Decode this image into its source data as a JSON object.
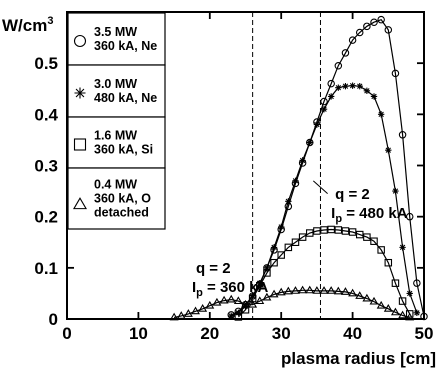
{
  "chart_data": {
    "type": "line",
    "title": "",
    "xlabel": "plasma radius [cm]",
    "ylabel": "W/cm³",
    "xlim": [
      0,
      50
    ],
    "ylim": [
      0,
      0.6
    ],
    "x_ticks": [
      "0",
      "10",
      "20",
      "30",
      "40",
      "50"
    ],
    "y_ticks": [
      "0",
      "0.1",
      "0.2",
      "0.3",
      "0.4",
      "0.5"
    ],
    "grid": false,
    "legend_position": "left",
    "series": [
      {
        "name": "3.5 MW 360 kA, Ne",
        "label_lines": [
          "3.5 MW",
          "360 kA, Ne"
        ],
        "marker": "circle",
        "points": [
          [
            23,
            0.008
          ],
          [
            24,
            0.015
          ],
          [
            25,
            0.028
          ],
          [
            26,
            0.045
          ],
          [
            27,
            0.068
          ],
          [
            28,
            0.1
          ],
          [
            29,
            0.135
          ],
          [
            30,
            0.175
          ],
          [
            31,
            0.22
          ],
          [
            32,
            0.265
          ],
          [
            33,
            0.305
          ],
          [
            34,
            0.345
          ],
          [
            35,
            0.385
          ],
          [
            36,
            0.425
          ],
          [
            37,
            0.46
          ],
          [
            38,
            0.495
          ],
          [
            39,
            0.52
          ],
          [
            40,
            0.545
          ],
          [
            41,
            0.56
          ],
          [
            42,
            0.572
          ],
          [
            43,
            0.58
          ],
          [
            44,
            0.585
          ],
          [
            45,
            0.565
          ],
          [
            46,
            0.48
          ],
          [
            47,
            0.36
          ],
          [
            48,
            0.2
          ],
          [
            49,
            0.07
          ],
          [
            50,
            0.005
          ]
        ]
      },
      {
        "name": "3.0 MW 480 kA, Ne",
        "label_lines": [
          "3.0 MW",
          "480 kA, Ne"
        ],
        "marker": "asterisk",
        "points": [
          [
            23,
            0.006
          ],
          [
            24,
            0.012
          ],
          [
            25,
            0.025
          ],
          [
            26,
            0.045
          ],
          [
            27,
            0.07
          ],
          [
            28,
            0.1
          ],
          [
            29,
            0.14
          ],
          [
            30,
            0.18
          ],
          [
            31,
            0.23
          ],
          [
            32,
            0.27
          ],
          [
            33,
            0.31
          ],
          [
            34,
            0.345
          ],
          [
            35,
            0.38
          ],
          [
            36,
            0.41
          ],
          [
            37,
            0.435
          ],
          [
            38,
            0.452
          ],
          [
            39,
            0.455
          ],
          [
            40,
            0.456
          ],
          [
            41,
            0.455
          ],
          [
            42,
            0.446
          ],
          [
            43,
            0.435
          ],
          [
            44,
            0.4
          ],
          [
            45,
            0.33
          ],
          [
            46,
            0.25
          ],
          [
            47,
            0.14
          ],
          [
            48,
            0.05
          ],
          [
            49,
            0.012
          ]
        ]
      },
      {
        "name": "1.6 MW 360 kA, Si",
        "label_lines": [
          "1.6 MW",
          "360 kA, Si"
        ],
        "marker": "square",
        "points": [
          [
            24,
            0.004
          ],
          [
            25,
            0.018
          ],
          [
            26,
            0.04
          ],
          [
            27,
            0.065
          ],
          [
            28,
            0.09
          ],
          [
            29,
            0.11
          ],
          [
            30,
            0.125
          ],
          [
            31,
            0.14
          ],
          [
            32,
            0.15
          ],
          [
            33,
            0.16
          ],
          [
            34,
            0.168
          ],
          [
            35,
            0.172
          ],
          [
            36,
            0.174
          ],
          [
            37,
            0.175
          ],
          [
            38,
            0.174
          ],
          [
            39,
            0.172
          ],
          [
            40,
            0.17
          ],
          [
            41,
            0.165
          ],
          [
            42,
            0.16
          ],
          [
            43,
            0.152
          ],
          [
            44,
            0.135
          ],
          [
            45,
            0.11
          ],
          [
            46,
            0.07
          ],
          [
            47,
            0.035
          ],
          [
            48,
            0.01
          ]
        ]
      },
      {
        "name": "0.4 MW 360 kA, O detached",
        "label_lines": [
          "0.4 MW",
          "360 kA, O",
          "detached"
        ],
        "marker": "triangle",
        "points": [
          [
            15,
            0.003
          ],
          [
            16,
            0.006
          ],
          [
            17,
            0.01
          ],
          [
            18,
            0.015
          ],
          [
            19,
            0.02
          ],
          [
            20,
            0.026
          ],
          [
            21,
            0.032
          ],
          [
            22,
            0.036
          ],
          [
            23,
            0.038
          ],
          [
            24,
            0.035
          ],
          [
            25,
            0.028
          ],
          [
            26,
            0.028
          ],
          [
            27,
            0.035
          ],
          [
            28,
            0.042
          ],
          [
            29,
            0.048
          ],
          [
            30,
            0.052
          ],
          [
            31,
            0.054
          ],
          [
            32,
            0.055
          ],
          [
            33,
            0.056
          ],
          [
            34,
            0.056
          ],
          [
            35,
            0.055
          ],
          [
            36,
            0.055
          ],
          [
            37,
            0.055
          ],
          [
            38,
            0.054
          ],
          [
            39,
            0.053
          ],
          [
            40,
            0.05
          ],
          [
            41,
            0.045
          ],
          [
            42,
            0.04
          ],
          [
            43,
            0.034
          ],
          [
            44,
            0.026
          ],
          [
            45,
            0.02
          ],
          [
            46,
            0.013
          ],
          [
            47,
            0.007
          ],
          [
            48,
            0.003
          ]
        ]
      }
    ],
    "vertical_lines": [
      {
        "x": 26,
        "q_label": "q = 2",
        "ip_label": "= 360 kA",
        "label_pos": [
          17.5,
          0.09
        ]
      },
      {
        "x": 35.5,
        "q_label": "q = 2",
        "ip_label": "= 480 kA",
        "label_pos": [
          37,
          0.235
        ]
      }
    ],
    "ip_symbol": "I",
    "ip_subscript": "p"
  }
}
